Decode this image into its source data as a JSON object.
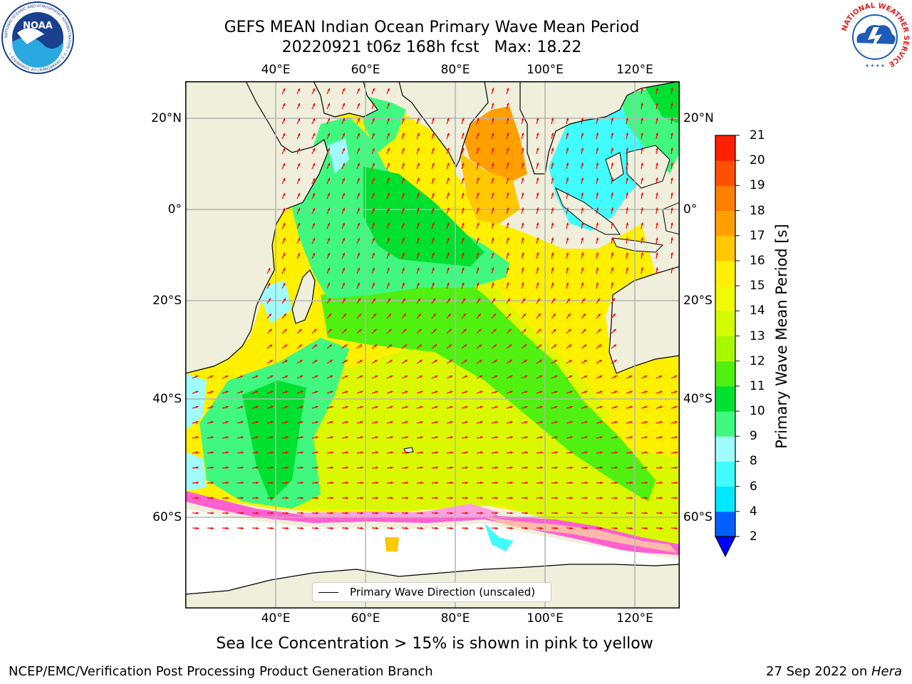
{
  "title": {
    "line1": "GEFS MEAN Indian Ocean Primary Wave Mean Period",
    "line2": "20220921 t06z 168h fcst   Max: 18.22"
  },
  "axes": {
    "lon_ticks": [
      "40°E",
      "60°E",
      "80°E",
      "100°E",
      "120°E"
    ],
    "lat_ticks": [
      "20°N",
      "0°",
      "20°S",
      "40°S",
      "60°S"
    ]
  },
  "colorbar": {
    "label": "Primary Wave Mean Period [s]",
    "levels": [
      2,
      4,
      6,
      8,
      9,
      10,
      11,
      12,
      13,
      14,
      15,
      16,
      17,
      18,
      19,
      20,
      21
    ],
    "colors": [
      "#0060ff",
      "#00e8ff",
      "#40fcfc",
      "#a0fcfc",
      "#40f880",
      "#00e030",
      "#50f010",
      "#a8f800",
      "#d4fa00",
      "#f0fa00",
      "#fff000",
      "#ffc800",
      "#ffa000",
      "#ff8000",
      "#ff5000",
      "#ff2000"
    ],
    "extend_color": "#0000ff"
  },
  "legend": {
    "label": "Primary Wave Direction (unscaled)"
  },
  "caption": "Sea Ice Concentration > 15% is shown in pink to yellow",
  "footer": {
    "left": "NCEP/EMC/Verification Post Processing Product Generation Branch",
    "date": "27 Sep 2022 on ",
    "host": "Hera"
  },
  "logos": {
    "noaa_text": "NOAA",
    "noaa_ring": "NATIONAL OCEANIC AND ATMOSPHERIC ADMINISTRATION • U.S. DEPARTMENT OF COMMERCE •",
    "nws_ring": "NATIONAL WEATHER SERVICE"
  },
  "colors": {
    "land": "#efefdc",
    "arrow": "#ff0000",
    "grid": "#b4b4b4"
  }
}
